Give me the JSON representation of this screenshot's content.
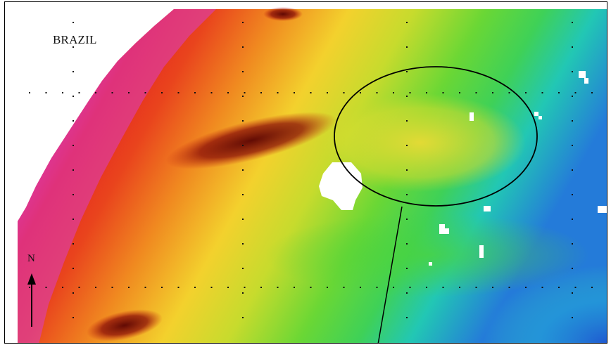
{
  "map": {
    "country_label": "BRAZIL",
    "north_arrow_label": "N",
    "icons": {
      "north_arrow": "north-arrow-icon",
      "highlight": "ellipse-highlight"
    },
    "colors": {
      "shallow": "#d23cc8",
      "mid_red": "#e8261a",
      "deep_red": "#7a0606",
      "orange": "#f18a1e",
      "yellow": "#ece12c",
      "green": "#54d431",
      "cyan": "#27c5cf",
      "blue": "#2b74d8"
    }
  }
}
